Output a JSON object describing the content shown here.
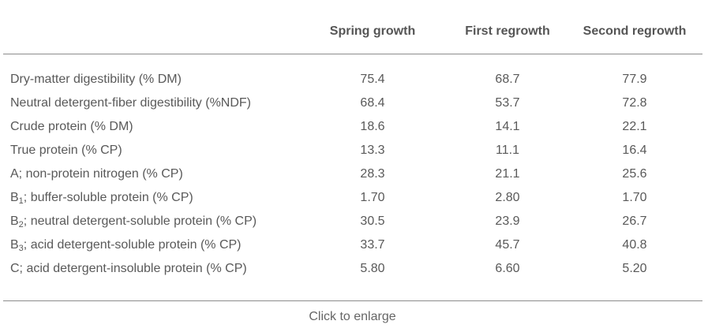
{
  "columns": [
    "Spring growth",
    "First regrowth",
    "Second regrowth"
  ],
  "rows": [
    {
      "label": "Dry-matter digestibility (% DM)",
      "values": [
        "75.4",
        "68.7",
        "77.9"
      ]
    },
    {
      "label": "Neutral detergent-fiber digestibility (%NDF)",
      "values": [
        "68.4",
        "53.7",
        "72.8"
      ]
    },
    {
      "label": "Crude protein (% DM)",
      "values": [
        "18.6",
        "14.1",
        "22.1"
      ]
    },
    {
      "label": "True protein (% CP)",
      "values": [
        "13.3",
        "11.1",
        "16.4"
      ]
    },
    {
      "label": "A; non-protein nitrogen (% CP)",
      "values": [
        "28.3",
        "21.1",
        "25.6"
      ]
    },
    {
      "label_prefix": "B",
      "label_sub": "1",
      "label_rest": "; buffer-soluble protein (% CP)",
      "values": [
        "1.70",
        "2.80",
        "1.70"
      ]
    },
    {
      "label_prefix": "B",
      "label_sub": "2",
      "label_rest": "; neutral detergent-soluble protein (% CP)",
      "values": [
        "30.5",
        "23.9",
        "26.7"
      ]
    },
    {
      "label_prefix": "B",
      "label_sub": "3",
      "label_rest": "; acid detergent-soluble protein (% CP)",
      "values": [
        "33.7",
        "45.7",
        "40.8"
      ]
    },
    {
      "label": "C; acid detergent-insoluble protein (% CP)",
      "values": [
        "5.80",
        "6.60",
        "5.20"
      ]
    }
  ],
  "footer": {
    "enlarge_label": "Click to enlarge"
  }
}
